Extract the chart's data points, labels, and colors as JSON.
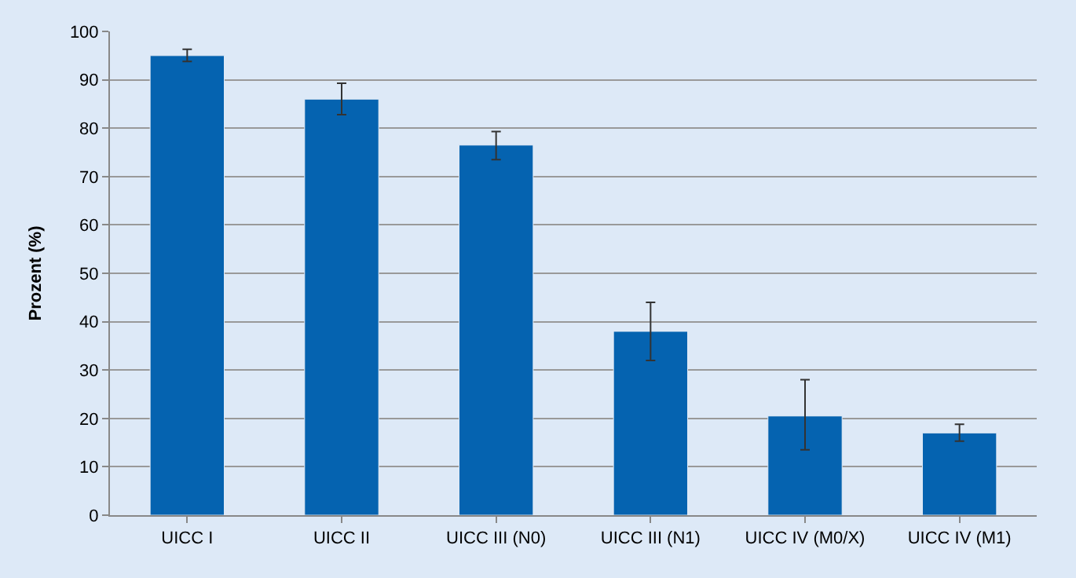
{
  "chart_data": {
    "type": "bar",
    "ylabel": "Prozent (%)",
    "categories": [
      "UICC I",
      "UICC II",
      "UICC III (N0)",
      "UICC III (N1)",
      "UICC IV (M0/X)",
      "UICC IV (M1)"
    ],
    "values": [
      95,
      86,
      76.5,
      38,
      20.5,
      17
    ],
    "errors": [
      [
        93.8,
        96.3
      ],
      [
        82.8,
        89.3
      ],
      [
        73.5,
        79.3
      ],
      [
        32,
        44
      ],
      [
        13.5,
        28
      ],
      [
        15.3,
        18.8
      ]
    ],
    "color": "#0563b0",
    "ylim": [
      0,
      100
    ],
    "yticks": [
      0,
      10,
      20,
      30,
      40,
      50,
      60,
      70,
      80,
      90,
      100
    ],
    "grid": "y",
    "legend": false
  }
}
